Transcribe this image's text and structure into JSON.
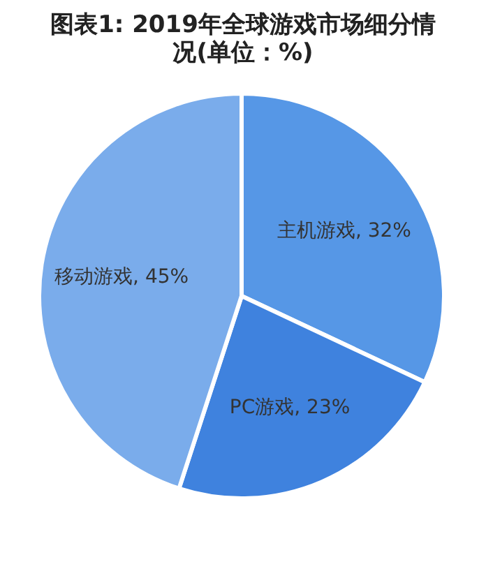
{
  "chart_data": {
    "type": "pie",
    "title": "图表1: 2019年全球游戏市场细分情况(单位：%)",
    "categories": [
      "主机游戏",
      "PC游戏",
      "移动游戏"
    ],
    "values": [
      32,
      23,
      45
    ],
    "value_labels": [
      "32%",
      "23%",
      "45%"
    ],
    "colors": [
      "#5697e6",
      "#3f82de",
      "#7aaceb"
    ],
    "legend": false
  }
}
